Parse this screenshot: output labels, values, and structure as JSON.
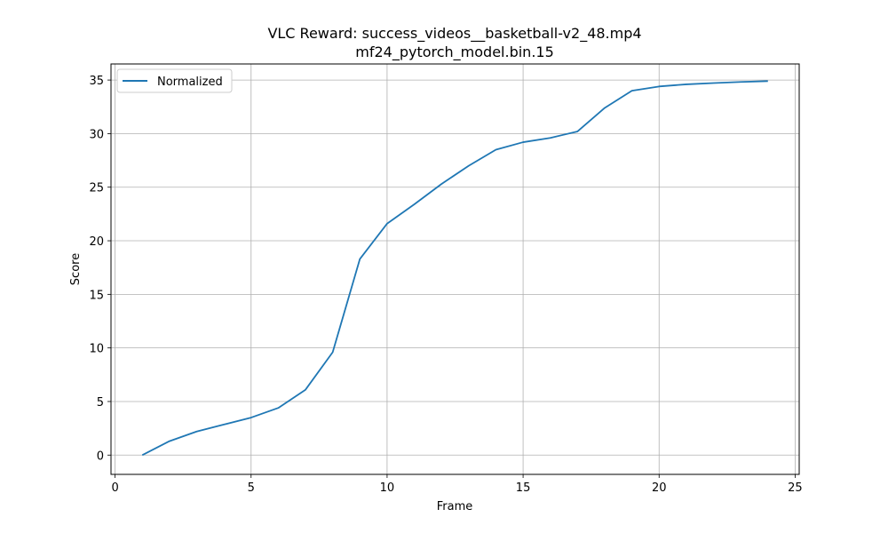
{
  "chart_data": {
    "type": "line",
    "title": "VLC Reward: success_videos__basketball-v2_48.mp4",
    "subtitle": "mf24_pytorch_model.bin.15",
    "xlabel": "Frame",
    "ylabel": "Score",
    "xlim": [
      -0.15,
      25.15
    ],
    "ylim": [
      -1.8,
      36.5
    ],
    "xticks": [
      0,
      5,
      10,
      15,
      20,
      25
    ],
    "yticks": [
      0,
      5,
      10,
      15,
      20,
      25,
      30,
      35
    ],
    "grid": true,
    "legend_position": "top-left",
    "series": [
      {
        "name": "Normalized",
        "color": "#1f77b4",
        "x": [
          1,
          2,
          3,
          4,
          5,
          6,
          7,
          8,
          9,
          10,
          11,
          12,
          13,
          14,
          15,
          16,
          17,
          18,
          19,
          20,
          21,
          22,
          23,
          24
        ],
        "y": [
          0.0,
          1.3,
          2.2,
          2.85,
          3.5,
          4.4,
          6.1,
          9.6,
          18.3,
          21.6,
          23.4,
          25.3,
          27.0,
          28.5,
          29.2,
          29.6,
          30.2,
          32.4,
          34.0,
          34.4,
          34.6,
          34.72,
          34.82,
          34.9
        ]
      }
    ]
  }
}
